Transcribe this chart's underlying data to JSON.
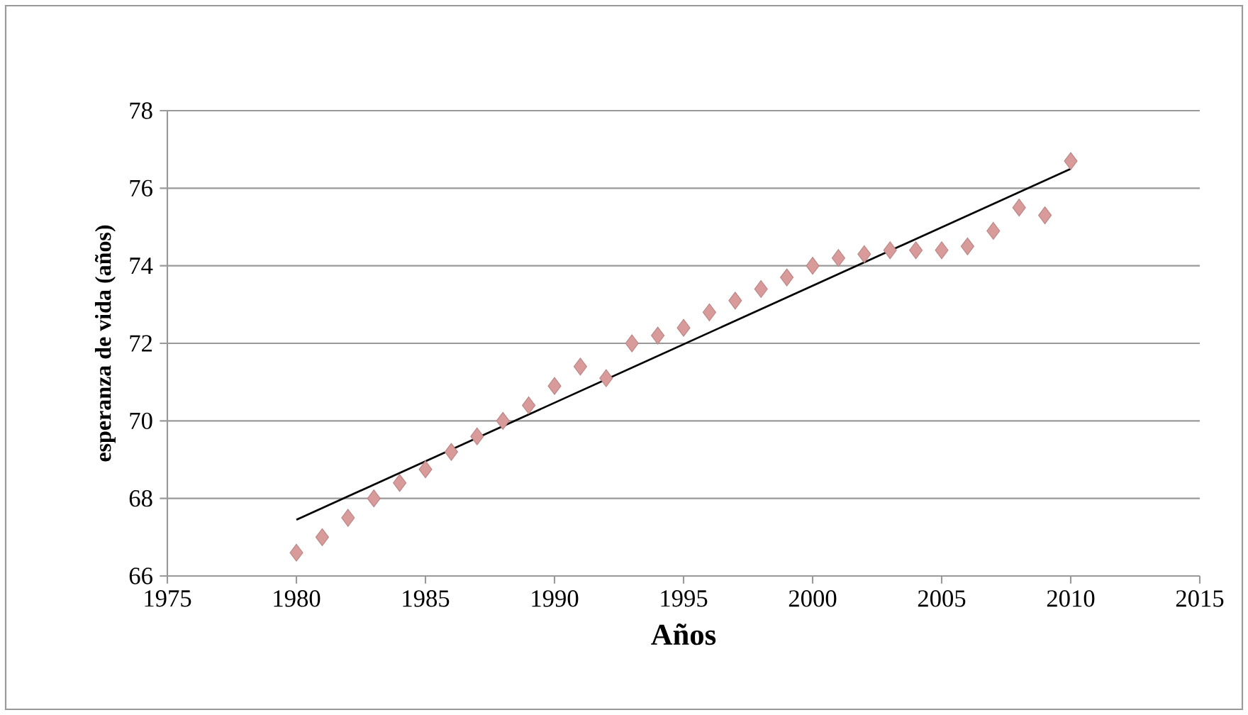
{
  "chart_data": {
    "type": "scatter",
    "xlabel": "Años",
    "ylabel": "esperanza de vida (años)",
    "xlim": [
      1975,
      2015
    ],
    "xticks": [
      1975,
      1980,
      1985,
      1990,
      1995,
      2000,
      2005,
      2010,
      2015
    ],
    "ylim": [
      66,
      78
    ],
    "yticks": [
      66,
      68,
      70,
      72,
      74,
      76,
      78
    ],
    "grid": "y",
    "marker": "diamond",
    "series": [
      {
        "color": "#d99a9a",
        "x": [
          1980,
          1981,
          1982,
          1983,
          1984,
          1985,
          1986,
          1987,
          1988,
          1989,
          1990,
          1991,
          1992,
          1993,
          1994,
          1995,
          1996,
          1997,
          1998,
          1999,
          2000,
          2001,
          2002,
          2003,
          2004,
          2005,
          2006,
          2007,
          2008,
          2009,
          2010
        ],
        "values": [
          66.6,
          67.0,
          67.5,
          68.0,
          68.4,
          68.75,
          69.2,
          69.6,
          70.0,
          70.4,
          70.9,
          71.4,
          71.1,
          72.0,
          72.2,
          72.4,
          72.8,
          73.1,
          73.4,
          73.7,
          74.0,
          74.2,
          74.3,
          74.4,
          74.4,
          74.4,
          74.5,
          74.9,
          75.5,
          75.3,
          76.7
        ]
      },
      {
        "type": "line",
        "color": "#000000",
        "marker": "none",
        "x": [
          1980,
          2010
        ],
        "values": [
          67.45,
          76.5
        ]
      }
    ]
  }
}
